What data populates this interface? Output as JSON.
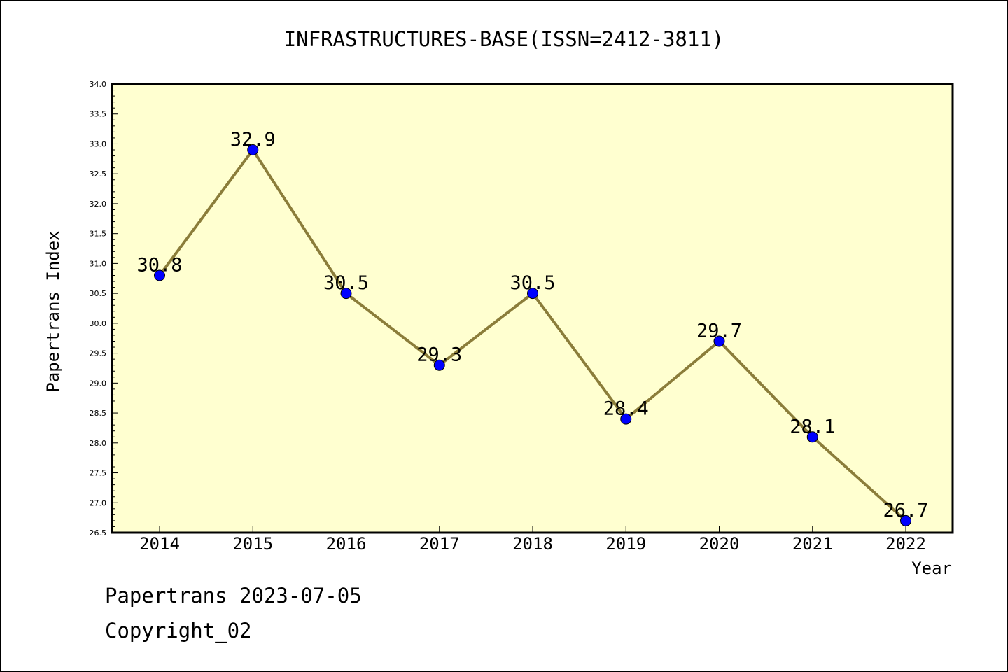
{
  "chart_data": {
    "type": "line",
    "title": "INFRASTRUCTURES-BASE(ISSN=2412-3811)",
    "xlabel": "Year",
    "ylabel": "Papertrans Index",
    "ylim": [
      26.5,
      34.0
    ],
    "yticks": [
      "26.5",
      "27.0",
      "27.5",
      "28.0",
      "28.5",
      "29.0",
      "29.5",
      "30.0",
      "30.5",
      "31.0",
      "31.5",
      "32.0",
      "32.5",
      "33.0",
      "33.5",
      "34.0"
    ],
    "categories": [
      "2014",
      "2015",
      "2016",
      "2017",
      "2018",
      "2019",
      "2020",
      "2021",
      "2022"
    ],
    "values": [
      30.8,
      32.9,
      30.5,
      29.3,
      30.5,
      28.4,
      29.7,
      28.1,
      26.7
    ],
    "data_labels": [
      "30.8",
      "32.9",
      "30.5",
      "29.3",
      "30.5",
      "28.4",
      "29.7",
      "28.1",
      "26.7"
    ],
    "grid": false,
    "colors": {
      "plot_bg": "#ffffd0",
      "line": "#8b7d3a",
      "marker": "#0000ff"
    }
  },
  "footer": {
    "line1": "Papertrans 2023-07-05",
    "line2": "Copyright_02"
  }
}
